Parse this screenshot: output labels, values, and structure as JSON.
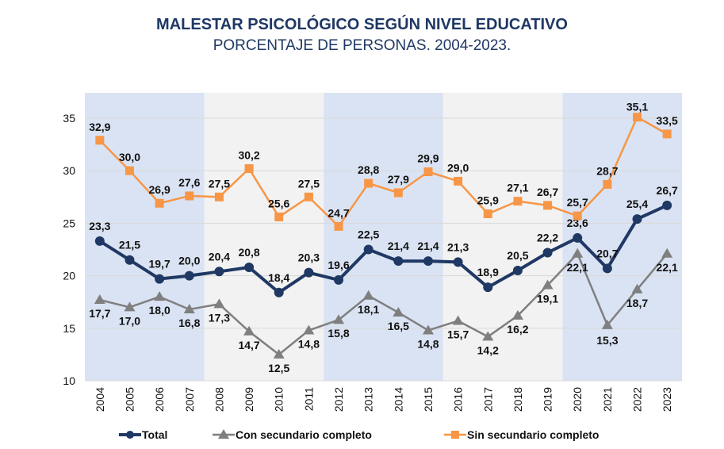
{
  "chart_data": {
    "type": "line",
    "title": "MALESTAR PSICOLÓGICO SEGÚN NIVEL EDUCATIVO",
    "subtitle": "PORCENTAJE DE PERSONAS. 2004-2023.",
    "xlabel": "",
    "ylabel": "",
    "ylim": [
      10,
      35
    ],
    "yticks": [
      "10",
      "15",
      "20",
      "25",
      "30",
      "35"
    ],
    "categories": [
      "2004",
      "2005",
      "2006",
      "2007",
      "2008",
      "2009",
      "2010",
      "2011",
      "2012",
      "2013",
      "2014",
      "2015",
      "2016",
      "2017",
      "2018",
      "2019",
      "2020",
      "2021",
      "2022",
      "2023"
    ],
    "grid": true,
    "legend_position": "bottom",
    "series": [
      {
        "name": "Total",
        "color": "#1f3864",
        "marker": "circle",
        "values": [
          23.3,
          21.5,
          19.7,
          20.0,
          20.4,
          20.8,
          18.4,
          20.3,
          19.6,
          22.5,
          21.4,
          21.4,
          21.3,
          18.9,
          20.5,
          22.2,
          23.6,
          20.7,
          25.4,
          26.7
        ],
        "labels": [
          "23,3",
          "21,5",
          "19,7",
          "20,0",
          "20,4",
          "20,8",
          "18,4",
          "20,3",
          "19,6",
          "22,5",
          "21,4",
          "21,4",
          "21,3",
          "18,9",
          "20,5",
          "22,2",
          "23,6",
          "20,7",
          "25,4",
          "26,7"
        ]
      },
      {
        "name": "Con secundario completo",
        "color": "#7f7f7f",
        "marker": "triangle",
        "values": [
          17.7,
          17.0,
          18.0,
          16.8,
          17.3,
          14.7,
          12.5,
          14.8,
          15.8,
          18.1,
          16.5,
          14.8,
          15.7,
          14.2,
          16.2,
          19.1,
          22.1,
          15.3,
          18.7,
          22.1
        ],
        "labels": [
          "17,7",
          "17,0",
          "18,0",
          "16,8",
          "17,3",
          "14,7",
          "12,5",
          "14,8",
          "15,8",
          "18,1",
          "16,5",
          "14,8",
          "15,7",
          "14,2",
          "16,2",
          "19,1",
          "22,1",
          "15,3",
          "18,7",
          "22,1"
        ]
      },
      {
        "name": "Sin secundario completo",
        "color": "#f79646",
        "marker": "square",
        "values": [
          32.9,
          30.0,
          26.9,
          27.6,
          27.5,
          30.2,
          25.6,
          27.5,
          24.7,
          28.8,
          27.9,
          29.9,
          29.0,
          25.9,
          27.1,
          26.7,
          25.7,
          28.7,
          35.1,
          33.5
        ],
        "labels": [
          "32,9",
          "30,0",
          "26,9",
          "27,6",
          "27,5",
          "30,2",
          "25,6",
          "27,5",
          "24,7",
          "28,8",
          "27,9",
          "29,9",
          "29,0",
          "25,9",
          "27,1",
          "26,7",
          "25,7",
          "28,7",
          "35,1",
          "33,5"
        ]
      }
    ],
    "band_colors": [
      "#dae3f3",
      "#f2f2f2"
    ]
  }
}
